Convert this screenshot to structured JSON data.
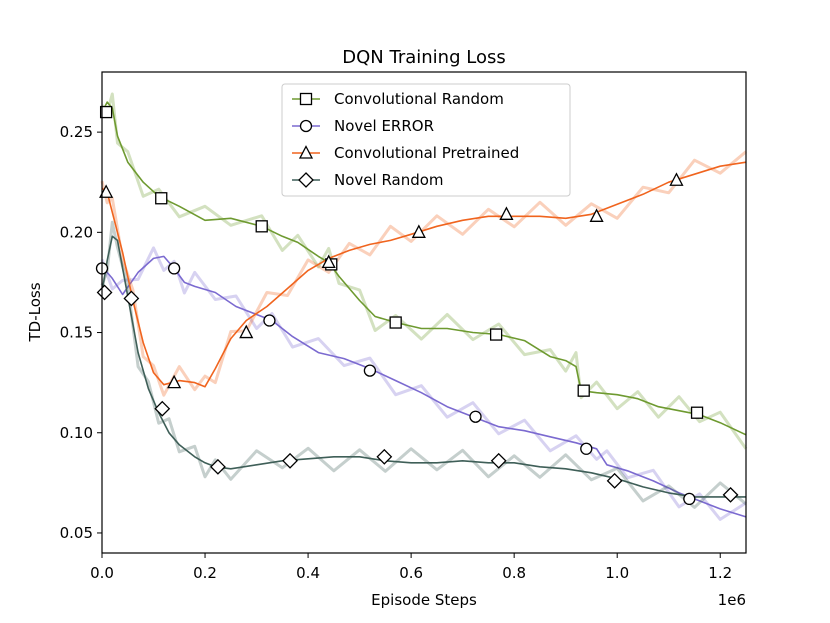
{
  "chart_data": {
    "type": "line",
    "title": "DQN Training Loss",
    "xlabel": "Episode Steps",
    "ylabel": "TD-Loss",
    "x_offset_label": "1e6",
    "xlim": [
      0.0,
      1.25
    ],
    "ylim": [
      0.04,
      0.28
    ],
    "x_ticks": [
      0.0,
      0.2,
      0.4,
      0.6,
      0.8,
      1.0,
      1.2
    ],
    "x_tick_labels": [
      "0.0",
      "0.2",
      "0.4",
      "0.6",
      "0.8",
      "1.0",
      "1.2"
    ],
    "y_ticks": [
      0.05,
      0.1,
      0.15,
      0.2,
      0.25
    ],
    "y_tick_labels": [
      "0.05",
      "0.10",
      "0.15",
      "0.20",
      "0.25"
    ],
    "grid": false,
    "legend_position": "top-center",
    "series": [
      {
        "name": "Convolutional Random",
        "color": "#6e9a30",
        "marker": "square",
        "x": [
          0.0,
          0.01,
          0.02,
          0.03,
          0.05,
          0.08,
          0.11,
          0.15,
          0.2,
          0.25,
          0.31,
          0.35,
          0.38,
          0.42,
          0.44,
          0.46,
          0.5,
          0.53,
          0.57,
          0.62,
          0.67,
          0.72,
          0.77,
          0.82,
          0.87,
          0.9,
          0.92,
          0.93,
          0.96,
          1.0,
          1.04,
          1.08,
          1.12,
          1.16,
          1.2,
          1.25
        ],
        "y": [
          0.26,
          0.265,
          0.262,
          0.248,
          0.235,
          0.225,
          0.218,
          0.213,
          0.206,
          0.207,
          0.203,
          0.198,
          0.195,
          0.188,
          0.185,
          0.178,
          0.166,
          0.158,
          0.155,
          0.152,
          0.152,
          0.15,
          0.149,
          0.146,
          0.138,
          0.136,
          0.133,
          0.121,
          0.12,
          0.119,
          0.117,
          0.113,
          0.111,
          0.109,
          0.105,
          0.099
        ],
        "marker_x": [
          0.008,
          0.115,
          0.31,
          0.445,
          0.57,
          0.765,
          0.935,
          1.155
        ],
        "marker_y": [
          0.26,
          0.217,
          0.203,
          0.184,
          0.155,
          0.149,
          0.121,
          0.11
        ]
      },
      {
        "name": "Novel ERROR",
        "color": "#7b6ad0",
        "marker": "circle",
        "x": [
          0.0,
          0.02,
          0.04,
          0.07,
          0.1,
          0.12,
          0.14,
          0.16,
          0.18,
          0.22,
          0.26,
          0.3,
          0.33,
          0.37,
          0.42,
          0.47,
          0.52,
          0.57,
          0.62,
          0.67,
          0.72,
          0.77,
          0.82,
          0.87,
          0.92,
          0.96,
          0.98,
          1.02,
          1.07,
          1.12,
          1.16,
          1.2,
          1.25
        ],
        "y": [
          0.183,
          0.177,
          0.169,
          0.18,
          0.187,
          0.188,
          0.182,
          0.175,
          0.173,
          0.17,
          0.163,
          0.159,
          0.156,
          0.148,
          0.14,
          0.137,
          0.132,
          0.126,
          0.12,
          0.113,
          0.108,
          0.103,
          0.101,
          0.098,
          0.095,
          0.092,
          0.084,
          0.081,
          0.076,
          0.07,
          0.066,
          0.062,
          0.058
        ],
        "marker_x": [
          0.0,
          0.14,
          0.325,
          0.52,
          0.725,
          0.94,
          1.14
        ],
        "marker_y": [
          0.182,
          0.182,
          0.156,
          0.131,
          0.108,
          0.092,
          0.067
        ]
      },
      {
        "name": "Convolutional Pretrained",
        "color": "#f0641e",
        "marker": "triangle",
        "x": [
          0.0,
          0.01,
          0.02,
          0.04,
          0.06,
          0.08,
          0.1,
          0.12,
          0.15,
          0.18,
          0.2,
          0.22,
          0.25,
          0.28,
          0.32,
          0.36,
          0.4,
          0.44,
          0.48,
          0.52,
          0.56,
          0.6,
          0.65,
          0.7,
          0.75,
          0.8,
          0.85,
          0.9,
          0.95,
          1.0,
          1.05,
          1.1,
          1.15,
          1.2,
          1.25
        ],
        "y": [
          0.222,
          0.22,
          0.21,
          0.19,
          0.166,
          0.145,
          0.13,
          0.124,
          0.126,
          0.125,
          0.123,
          0.132,
          0.147,
          0.156,
          0.163,
          0.172,
          0.181,
          0.187,
          0.191,
          0.194,
          0.196,
          0.199,
          0.203,
          0.206,
          0.208,
          0.208,
          0.208,
          0.207,
          0.209,
          0.214,
          0.219,
          0.225,
          0.229,
          0.233,
          0.235
        ],
        "marker_x": [
          0.008,
          0.14,
          0.28,
          0.44,
          0.615,
          0.785,
          0.96,
          1.115
        ],
        "marker_y": [
          0.22,
          0.125,
          0.15,
          0.185,
          0.2,
          0.209,
          0.208,
          0.226
        ]
      },
      {
        "name": "Novel Random",
        "color": "#3f5f58",
        "marker": "diamond",
        "x": [
          0.0,
          0.01,
          0.02,
          0.03,
          0.05,
          0.07,
          0.09,
          0.11,
          0.13,
          0.15,
          0.18,
          0.2,
          0.22,
          0.25,
          0.3,
          0.35,
          0.4,
          0.45,
          0.5,
          0.55,
          0.6,
          0.65,
          0.7,
          0.75,
          0.8,
          0.85,
          0.9,
          0.95,
          1.0,
          1.05,
          1.1,
          1.15,
          1.2,
          1.25
        ],
        "y": [
          0.17,
          0.186,
          0.198,
          0.196,
          0.168,
          0.14,
          0.122,
          0.11,
          0.1,
          0.094,
          0.088,
          0.085,
          0.083,
          0.082,
          0.084,
          0.086,
          0.087,
          0.088,
          0.088,
          0.086,
          0.085,
          0.085,
          0.086,
          0.085,
          0.085,
          0.083,
          0.082,
          0.08,
          0.077,
          0.073,
          0.07,
          0.068,
          0.068,
          0.068
        ],
        "marker_x": [
          0.005,
          0.057,
          0.117,
          0.225,
          0.365,
          0.548,
          0.77,
          0.995,
          1.22
        ],
        "marker_y": [
          0.17,
          0.167,
          0.112,
          0.083,
          0.086,
          0.088,
          0.086,
          0.076,
          0.069
        ]
      }
    ]
  }
}
